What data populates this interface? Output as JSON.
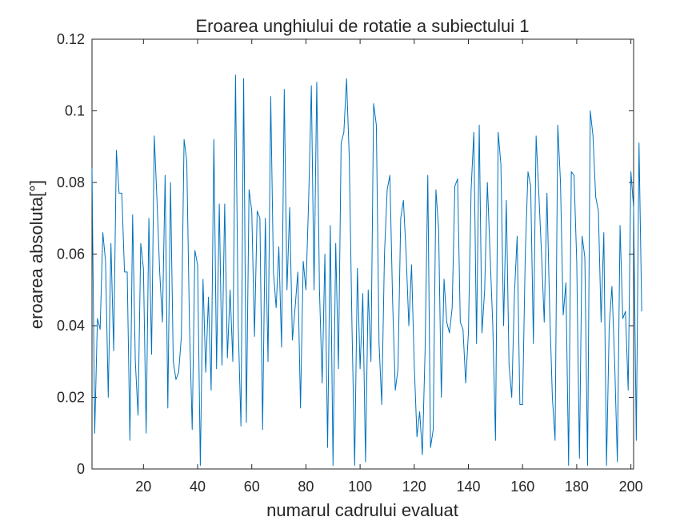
{
  "chart_data": {
    "type": "line",
    "title": "Eroarea unghiului de rotatie a subiectului 1",
    "xlabel": "numarul cadrului evaluat",
    "ylabel": "eroarea absoluta[°]",
    "xlim": [
      1,
      201
    ],
    "ylim": [
      0,
      0.12
    ],
    "xticks": [
      20,
      40,
      60,
      80,
      100,
      120,
      140,
      160,
      180,
      200
    ],
    "xtick_labels": [
      "20",
      "40",
      "60",
      "80",
      "100",
      "120",
      "140",
      "160",
      "180",
      "200"
    ],
    "yticks": [
      0,
      0.02,
      0.04,
      0.06,
      0.08,
      0.1,
      0.12
    ],
    "ytick_labels": [
      "0",
      "0.02",
      "0.04",
      "0.06",
      "0.08",
      "0.1",
      "0.12"
    ],
    "grid": false,
    "box": true,
    "colors": {
      "series": "#0072BD",
      "axes": "#262626",
      "background": "#ffffff"
    },
    "series": [
      {
        "x_start": 1,
        "values": [
          0.084,
          0.01,
          0.042,
          0.039,
          0.066,
          0.058,
          0.02,
          0.063,
          0.033,
          0.089,
          0.077,
          0.077,
          0.055,
          0.055,
          0.008,
          0.071,
          0.03,
          0.015,
          0.063,
          0.056,
          0.01,
          0.07,
          0.032,
          0.093,
          0.075,
          0.055,
          0.041,
          0.082,
          0.017,
          0.08,
          0.03,
          0.025,
          0.027,
          0.037,
          0.092,
          0.086,
          0.04,
          0.011,
          0.061,
          0.057,
          0.001,
          0.053,
          0.027,
          0.048,
          0.022,
          0.092,
          0.028,
          0.074,
          0.029,
          0.074,
          0.031,
          0.05,
          0.03,
          0.11,
          0.04,
          0.012,
          0.109,
          0.013,
          0.078,
          0.072,
          0.037,
          0.072,
          0.07,
          0.011,
          0.07,
          0.03,
          0.104,
          0.055,
          0.045,
          0.062,
          0.034,
          0.106,
          0.05,
          0.073,
          0.036,
          0.045,
          0.055,
          0.017,
          0.058,
          0.05,
          0.075,
          0.107,
          0.05,
          0.108,
          0.05,
          0.024,
          0.06,
          0.006,
          0.068,
          0.001,
          0.063,
          0.028,
          0.091,
          0.094,
          0.109,
          0.087,
          0.04,
          0.001,
          0.056,
          0.028,
          0.049,
          0.002,
          0.05,
          0.03,
          0.102,
          0.096,
          0.035,
          0.018,
          0.06,
          0.078,
          0.082,
          0.047,
          0.022,
          0.028,
          0.07,
          0.075,
          0.06,
          0.04,
          0.057,
          0.029,
          0.009,
          0.016,
          0.004,
          0.033,
          0.082,
          0.006,
          0.011,
          0.078,
          0.067,
          0.02,
          0.053,
          0.041,
          0.038,
          0.045,
          0.079,
          0.081,
          0.041,
          0.039,
          0.024,
          0.038,
          0.078,
          0.094,
          0.035,
          0.096,
          0.038,
          0.05,
          0.08,
          0.06,
          0.04,
          0.008,
          0.094,
          0.085,
          0.04,
          0.075,
          0.029,
          0.02,
          0.049,
          0.065,
          0.018,
          0.018,
          0.06,
          0.083,
          0.079,
          0.035,
          0.093,
          0.077,
          0.06,
          0.041,
          0.077,
          0.045,
          0.02,
          0.008,
          0.096,
          0.08,
          0.043,
          0.052,
          0.001,
          0.083,
          0.082,
          0.058,
          0.003,
          0.065,
          0.059,
          0.001,
          0.1,
          0.093,
          0.076,
          0.072,
          0.041,
          0.066,
          0.001,
          0.04,
          0.051,
          0.03,
          0.002,
          0.068,
          0.042,
          0.044,
          0.022,
          0.083,
          0.073,
          0.008,
          0.091,
          0.044
        ]
      }
    ]
  }
}
